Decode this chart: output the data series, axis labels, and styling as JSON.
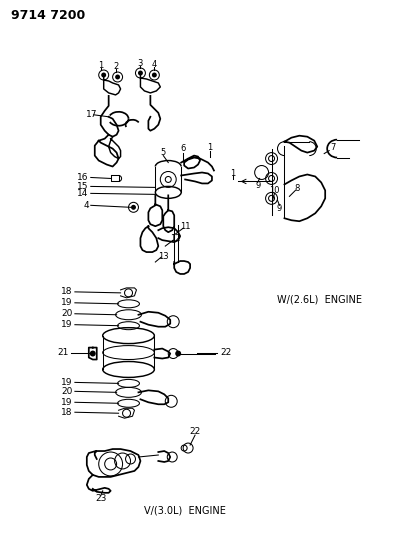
{
  "title_code": "9714 7200",
  "background_color": "#ffffff",
  "line_color": "#000000",
  "fig_width": 4.11,
  "fig_height": 5.33,
  "dpi": 100,
  "labels": {
    "top_left": "9714 7200",
    "engine_top": "W/(2.6L)  ENGINE",
    "engine_bottom": "V/(3.0L)  ENGINE"
  }
}
